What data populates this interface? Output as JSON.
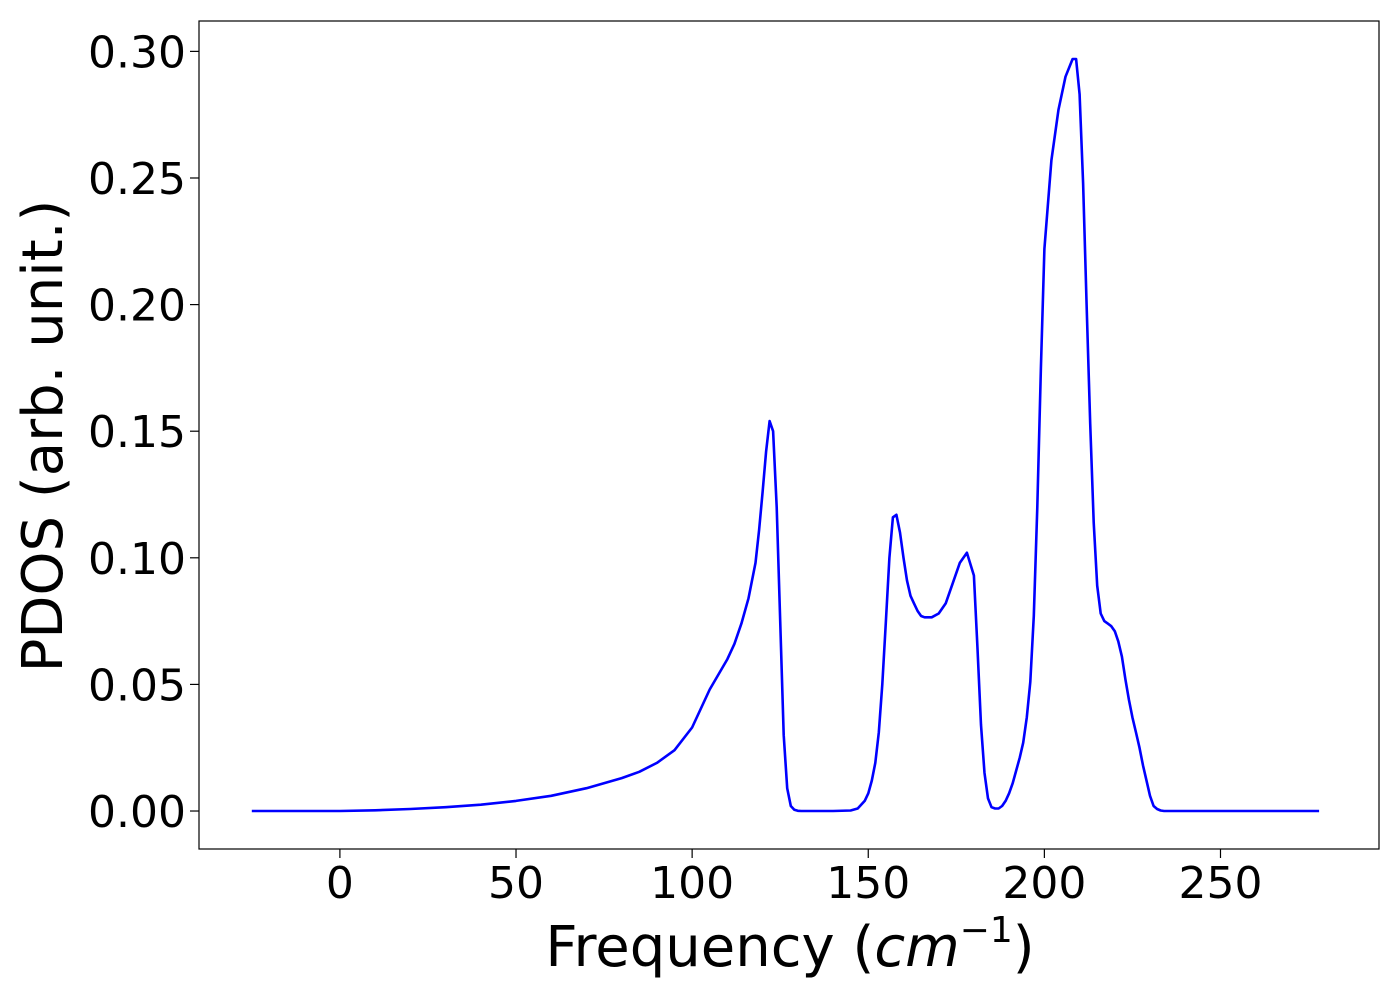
{
  "chart_data": {
    "type": "line",
    "title": "",
    "xlabel": "Frequency (",
    "xlabel_math": "cm",
    "xlabel_exp": "−1",
    "xlabel_close": ")",
    "ylabel": "PDOS (arb. unit.)",
    "xlim": [
      -40,
      295
    ],
    "ylim": [
      -0.015,
      0.312
    ],
    "xticks": [
      0,
      50,
      100,
      150,
      200,
      250
    ],
    "xtick_labels": [
      "0",
      "50",
      "100",
      "150",
      "200",
      "250"
    ],
    "yticks": [
      0.0,
      0.05,
      0.1,
      0.15,
      0.2,
      0.25,
      0.3
    ],
    "ytick_labels": [
      "0.00",
      "0.05",
      "0.10",
      "0.15",
      "0.20",
      "0.25",
      "0.30"
    ],
    "grid": false,
    "series": [
      {
        "color": "#0000ff",
        "x": [
          -25,
          0,
          10,
          20,
          30,
          40,
          50,
          60,
          70,
          80,
          85,
          90,
          95,
          100,
          105,
          110,
          112,
          114,
          116,
          118,
          119,
          120,
          121,
          122,
          123,
          124,
          125,
          126,
          127,
          128,
          129,
          130,
          131,
          132,
          133,
          135,
          140,
          145,
          147,
          149,
          150,
          151,
          152,
          153,
          154,
          155,
          156,
          157,
          158,
          159,
          160,
          161,
          162,
          163,
          164,
          165,
          166,
          168,
          170,
          172,
          174,
          176,
          178,
          180,
          181,
          182,
          183,
          184,
          185,
          186,
          187,
          188,
          189,
          190,
          191,
          192,
          193,
          194,
          195,
          196,
          197,
          198,
          199,
          200,
          202,
          204,
          206,
          208,
          209,
          210,
          211,
          212,
          213,
          214,
          215,
          216,
          217,
          218,
          219,
          220,
          221,
          222,
          223,
          224,
          225,
          226,
          227,
          228,
          229,
          230,
          231,
          232,
          233,
          234,
          235,
          236,
          237,
          238,
          239,
          240,
          242,
          244,
          246,
          248,
          250,
          252,
          253,
          254,
          255,
          256,
          258,
          260,
          265,
          270,
          278
        ],
        "y": [
          0,
          0,
          0.0003,
          0.0008,
          0.0015,
          0.0025,
          0.004,
          0.006,
          0.009,
          0.013,
          0.0155,
          0.019,
          0.024,
          0.033,
          0.048,
          0.06,
          0.066,
          0.074,
          0.084,
          0.098,
          0.111,
          0.126,
          0.142,
          0.154,
          0.15,
          0.12,
          0.075,
          0.03,
          0.009,
          0.002,
          0.0005,
          0.0001,
          0,
          0,
          0,
          0,
          0,
          0.0002,
          0.001,
          0.004,
          0.007,
          0.012,
          0.019,
          0.031,
          0.05,
          0.075,
          0.1,
          0.116,
          0.117,
          0.11,
          0.1,
          0.091,
          0.085,
          0.082,
          0.079,
          0.077,
          0.0765,
          0.0765,
          0.078,
          0.082,
          0.09,
          0.098,
          0.102,
          0.093,
          0.065,
          0.034,
          0.015,
          0.005,
          0.0015,
          0.001,
          0.001,
          0.002,
          0.004,
          0.007,
          0.011,
          0.016,
          0.021,
          0.027,
          0.037,
          0.051,
          0.077,
          0.12,
          0.175,
          0.222,
          0.257,
          0.277,
          0.29,
          0.297,
          0.297,
          0.283,
          0.248,
          0.2,
          0.153,
          0.114,
          0.089,
          0.078,
          0.075,
          0.074,
          0.073,
          0.071,
          0.067,
          0.061,
          0.052,
          0.044,
          0.037,
          0.031,
          0.025,
          0.018,
          0.012,
          0.006,
          0.002,
          0.0008,
          0.0002,
          0,
          0,
          0,
          0,
          0,
          0,
          0,
          0,
          0,
          0,
          0,
          0,
          0,
          0,
          0,
          0,
          0,
          0,
          0,
          0,
          0,
          0
        ]
      }
    ]
  }
}
